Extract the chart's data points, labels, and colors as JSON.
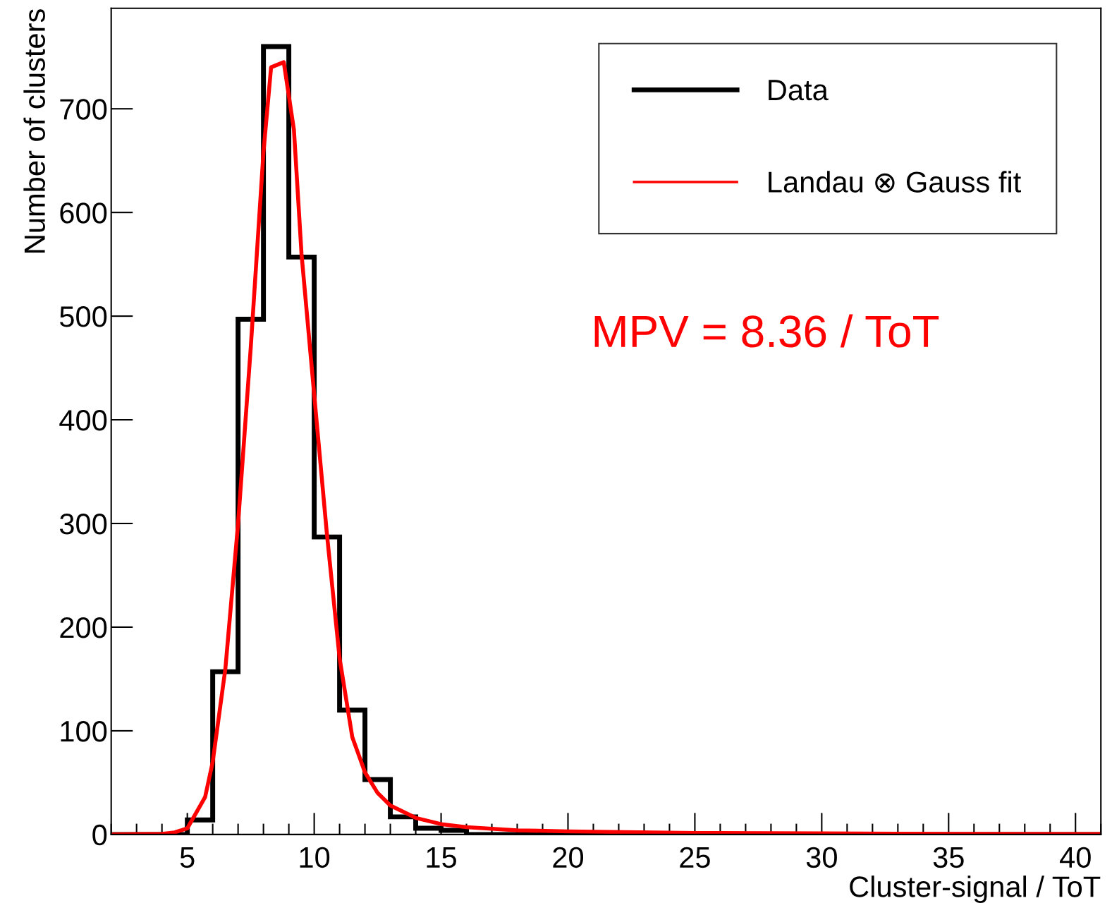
{
  "chart_data": {
    "type": "histogram",
    "xlabel": "Cluster-signal / ToT",
    "ylabel": "Number of clusters",
    "xlim": [
      2,
      41
    ],
    "xticks": [
      5,
      10,
      15,
      20,
      25,
      30,
      35,
      40
    ],
    "ylim": [
      0,
      797
    ],
    "yticks": [
      0,
      100,
      200,
      300,
      400,
      500,
      600,
      700
    ],
    "legend": "top right",
    "grid": false,
    "annotations": [
      "MPV = 8.36 / ToT"
    ],
    "series": [
      {
        "name": "Data",
        "color": "#000000",
        "bins": [
          2,
          3,
          4,
          5,
          6,
          7,
          8,
          9,
          10,
          11,
          12,
          13,
          14,
          15,
          16,
          17,
          18,
          19,
          20,
          21,
          22,
          23,
          24,
          25,
          26,
          27,
          28,
          29,
          30,
          31,
          32,
          33,
          34,
          35,
          36,
          37,
          38,
          39,
          40,
          41
        ],
        "values": [
          0,
          0,
          0,
          14,
          157,
          497,
          760,
          557,
          287,
          120,
          53,
          17,
          6,
          4,
          0,
          0,
          0,
          0,
          0,
          0,
          0,
          0,
          0,
          0,
          0,
          0,
          0,
          0,
          0,
          0,
          0,
          0,
          0,
          0,
          0,
          0,
          0,
          0,
          0
        ]
      },
      {
        "name": "Landau ⊗ Gauss fit",
        "type": "line",
        "color": "#ff0000",
        "x": [
          2,
          4,
          4.5,
          5,
          5.7,
          6,
          6.5,
          7,
          7.5,
          8,
          8.3,
          8.8,
          9.2,
          9.5,
          10,
          10.5,
          11,
          11.5,
          12,
          12.5,
          13,
          14,
          15,
          16,
          18,
          20,
          25,
          30,
          35,
          41
        ],
        "values": [
          0,
          0.5,
          2,
          6,
          36,
          70,
          160,
          300,
          470,
          658,
          740,
          745,
          680,
          560,
          424,
          290,
          170,
          94,
          60,
          40,
          28,
          16,
          10,
          7,
          4,
          3,
          1.5,
          1,
          0.6,
          0.4
        ]
      }
    ]
  }
}
